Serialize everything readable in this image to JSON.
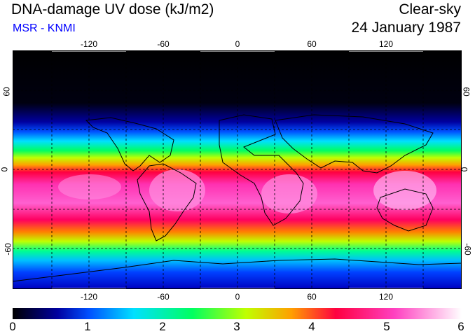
{
  "title": "DNA-damage UV dose (kJ/m2)",
  "credit": "MSR - KNMI",
  "sky_condition": "Clear-sky",
  "date": "24 January 1987",
  "longitude_ticks": [
    "-120",
    "-60",
    "0",
    "60",
    "120"
  ],
  "latitude_ticks": [
    "60",
    "0",
    "-60"
  ],
  "colorbar": {
    "labels": [
      "0",
      "1",
      "2",
      "3",
      "4",
      "5",
      "6"
    ],
    "min": 0,
    "max": 6,
    "colors": [
      "#000000",
      "#0000a0",
      "#0050ff",
      "#00e0ff",
      "#00ff60",
      "#c0ff00",
      "#ffa000",
      "#ff0040",
      "#ff40c0",
      "#ffffff"
    ]
  }
}
